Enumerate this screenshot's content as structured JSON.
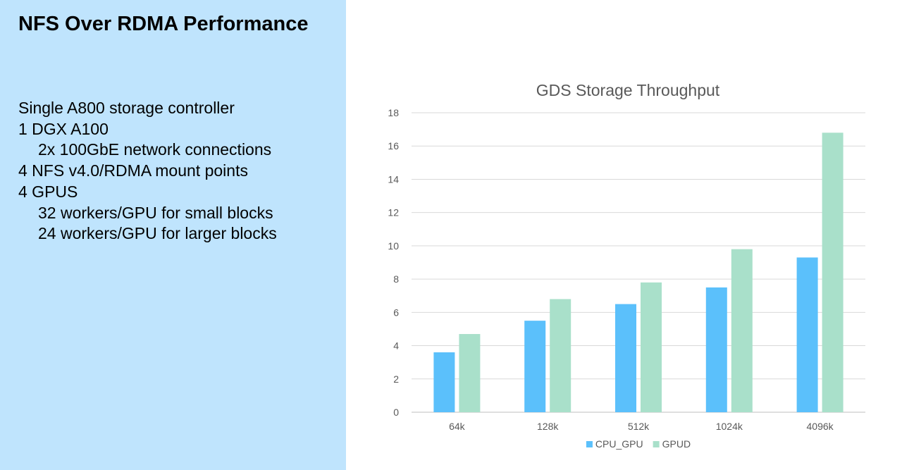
{
  "slide": {
    "title": "NFS Over RDMA Performance",
    "bullets": [
      {
        "text": "Single A800 storage controller",
        "level": 1
      },
      {
        "text": "1 DGX A100",
        "level": 1
      },
      {
        "text": "2x 100GbE network connections",
        "level": 2
      },
      {
        "text": "4 NFS v4.0/RDMA mount points",
        "level": 1
      },
      {
        "text": "4 GPUS",
        "level": 1
      },
      {
        "text": "32 workers/GPU for small blocks",
        "level": 2
      },
      {
        "text": "24 workers/GPU for larger blocks",
        "level": 2
      }
    ],
    "panel_color": "#bfe4fd"
  },
  "chart_data": {
    "type": "bar",
    "title": "GDS Storage Throughput",
    "xlabel": "",
    "ylabel": "",
    "categories": [
      "64k",
      "128k",
      "512k",
      "1024k",
      "4096k"
    ],
    "series": [
      {
        "name": "CPU_GPU",
        "color": "#5bc0fb",
        "values": [
          3.6,
          5.5,
          6.5,
          7.5,
          9.3
        ]
      },
      {
        "name": "GPUD",
        "color": "#a9e0ca",
        "values": [
          4.7,
          6.8,
          7.8,
          9.8,
          16.8
        ]
      }
    ],
    "ylim": [
      0,
      18
    ],
    "yticks": [
      0,
      2,
      4,
      6,
      8,
      10,
      12,
      14,
      16,
      18
    ],
    "grid": true,
    "legend_position": "bottom"
  }
}
